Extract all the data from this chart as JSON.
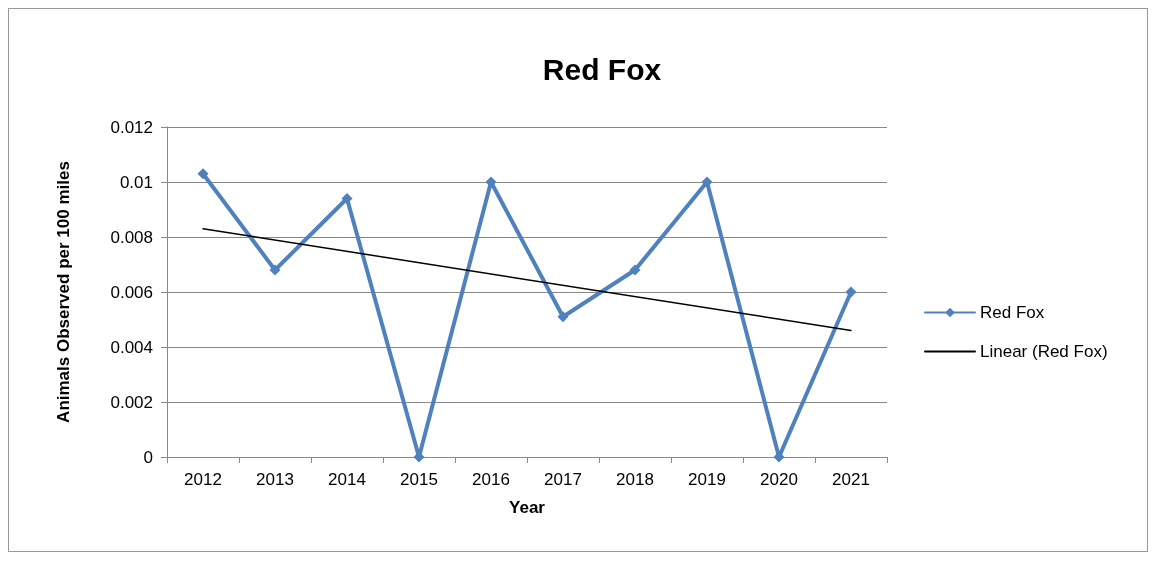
{
  "chart_data": {
    "type": "line",
    "title": "Red Fox",
    "xlabel": "Year",
    "ylabel": "Animals Observed per 100 miles",
    "categories": [
      "2012",
      "2013",
      "2014",
      "2015",
      "2016",
      "2017",
      "2018",
      "2019",
      "2020",
      "2021"
    ],
    "series": [
      {
        "name": "Red Fox",
        "color": "#4f81bd",
        "marker": "diamond",
        "values": [
          0.0103,
          0.0068,
          0.0094,
          0,
          0.01,
          0.0051,
          0.0068,
          0.01,
          0,
          0.006
        ]
      },
      {
        "name": "Linear (Red Fox)",
        "color": "#000000",
        "marker": "none",
        "values": [
          0.0083,
          null,
          null,
          null,
          null,
          null,
          null,
          null,
          null,
          0.0046
        ]
      }
    ],
    "ylim": [
      0,
      0.012
    ],
    "yticks": [
      0,
      0.002,
      0.004,
      0.006,
      0.008,
      0.01,
      0.012
    ],
    "grid": "y",
    "legend": "right"
  }
}
